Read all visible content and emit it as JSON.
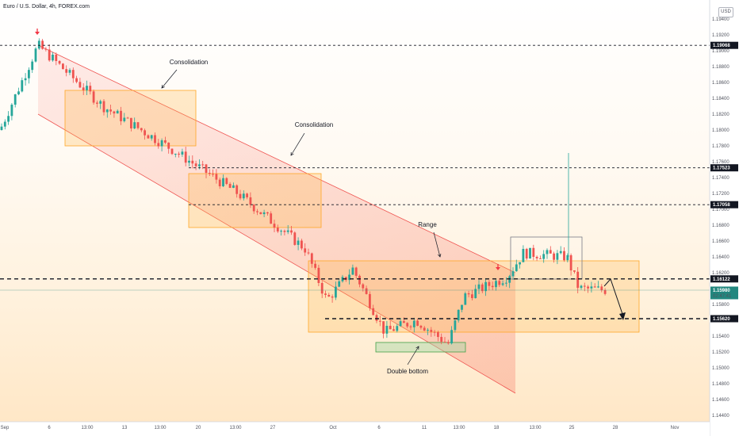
{
  "header": {
    "title": "Euro / U.S. Dollar, 4h, FOREX.com",
    "currency": "USD"
  },
  "chart_data": {
    "type": "candlestick",
    "title": "Euro / U.S. Dollar, 4h, FOREX.com",
    "x_ticks": [
      "Sep",
      "6",
      "13:00",
      "13",
      "13:00",
      "20",
      "13:00",
      "27",
      "Oct",
      "6",
      "11",
      "13:00",
      "18",
      "13:00",
      "25",
      "28",
      "Nov"
    ],
    "y_ticks": [
      "1.19400",
      "1.19200",
      "1.19000",
      "1.18800",
      "1.18600",
      "1.18400",
      "1.18200",
      "1.18000",
      "1.17800",
      "1.17600",
      "1.17400",
      "1.17200",
      "1.17000",
      "1.16800",
      "1.16600",
      "1.16400",
      "1.16200",
      "1.16000",
      "1.15800",
      "1.15600",
      "1.15400",
      "1.15200",
      "1.15000",
      "1.14800",
      "1.14600",
      "1.14400"
    ],
    "ylim": [
      1.1425,
      1.195
    ],
    "price_labels": [
      {
        "value": 1.19068,
        "text": "1.19068"
      },
      {
        "value": 1.17523,
        "text": "1.17523"
      },
      {
        "value": 1.17058,
        "text": "1.17058"
      },
      {
        "value": 1.16122,
        "text": "1.16122"
      },
      {
        "value": 1.1598,
        "text": "1.15980",
        "countdown": "02:47:41"
      },
      {
        "value": 1.1562,
        "text": "1.15620"
      }
    ],
    "annotations": [
      "Consolidation",
      "Consolidation",
      "Range",
      "Double bottom"
    ],
    "key_points": [
      {
        "x": 0,
        "y": 1.18
      },
      {
        "x": 48,
        "y": 1.1907
      },
      {
        "x": 130,
        "y": 1.183
      },
      {
        "x": 218,
        "y": 1.1775
      },
      {
        "x": 300,
        "y": 1.172
      },
      {
        "x": 385,
        "y": 1.165
      },
      {
        "x": 412,
        "y": 1.1585
      },
      {
        "x": 445,
        "y": 1.1625
      },
      {
        "x": 485,
        "y": 1.1545
      },
      {
        "x": 525,
        "y": 1.156
      },
      {
        "x": 565,
        "y": 1.153
      },
      {
        "x": 585,
        "y": 1.159
      },
      {
        "x": 640,
        "y": 1.1615
      },
      {
        "x": 660,
        "y": 1.1645
      },
      {
        "x": 715,
        "y": 1.164
      },
      {
        "x": 730,
        "y": 1.16
      },
      {
        "x": 765,
        "y": 1.1598
      }
    ],
    "colors": {
      "up": "#26a69a",
      "down": "#ef5350",
      "box": "#ffb74d",
      "channel": "#f44336",
      "label_bg": "#131722",
      "current_bg": "#22877f"
    }
  }
}
